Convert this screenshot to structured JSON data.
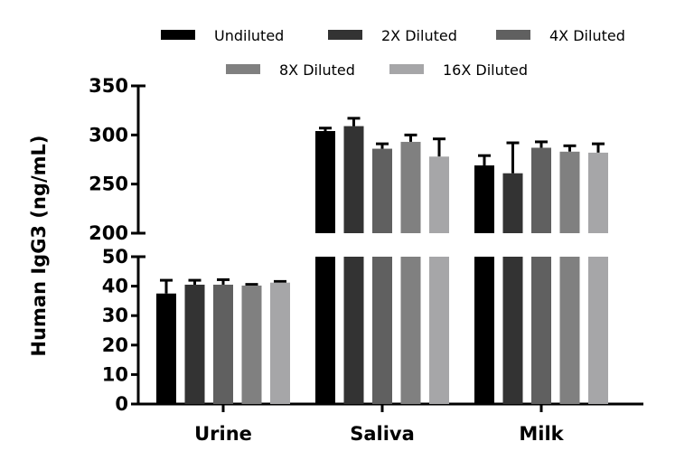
{
  "chart_data": {
    "type": "bar",
    "title": "",
    "xlabel": "",
    "ylabel": "Human IgG3 (ng/mL)",
    "y_axis_break": {
      "lower_range": [
        0,
        50
      ],
      "upper_range": [
        200,
        350
      ]
    },
    "lower_ticks": [
      "0",
      "10",
      "20",
      "30",
      "40",
      "50"
    ],
    "upper_ticks": [
      "200",
      "250",
      "300",
      "350"
    ],
    "categories": [
      "Urine",
      "Saliva",
      "Milk"
    ],
    "legend_placement": "top",
    "series": [
      {
        "name": "Undiluted",
        "color": "#000000",
        "values": [
          37.5,
          304,
          269
        ],
        "error_upper": [
          42,
          307,
          279
        ]
      },
      {
        "name": "2X Diluted",
        "color": "#333333",
        "values": [
          40.5,
          309,
          261
        ],
        "error_upper": [
          42,
          317,
          292
        ]
      },
      {
        "name": "4X Diluted",
        "color": "#606060",
        "values": [
          40.5,
          286,
          287
        ],
        "error_upper": [
          42.2,
          291,
          293
        ]
      },
      {
        "name": "8X Diluted",
        "color": "#808080",
        "values": [
          40.2,
          293,
          283
        ],
        "error_upper": [
          40.6,
          300,
          289
        ]
      },
      {
        "name": "16X Diluted",
        "color": "#a6a6a8",
        "values": [
          41.2,
          278,
          282
        ],
        "error_upper": [
          41.6,
          296,
          291
        ]
      }
    ]
  }
}
